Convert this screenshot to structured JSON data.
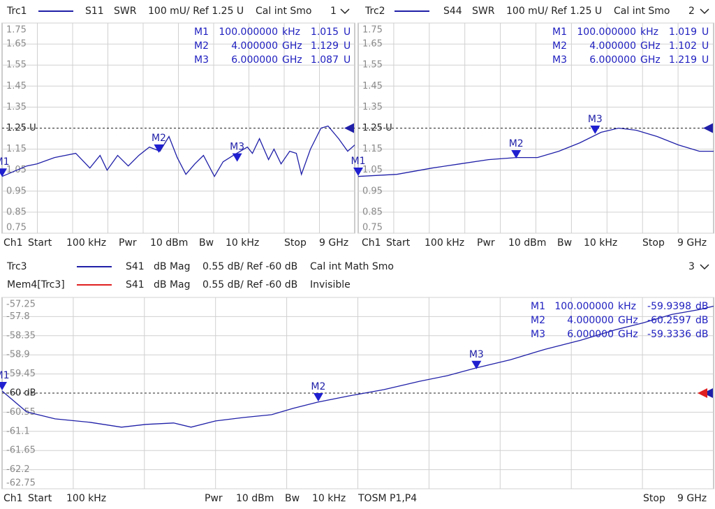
{
  "chart_data": [
    {
      "type": "line",
      "window": "1",
      "footer": [
        "Ch1",
        "Start",
        "100 kHz",
        "Pwr",
        "10 dBm",
        "Bw",
        "10 kHz",
        "Stop",
        "9 GHz"
      ],
      "x": [
        0.0001,
        0.63,
        0.89,
        1.34,
        1.88,
        2.24,
        2.5,
        2.68,
        2.95,
        3.22,
        3.49,
        3.76,
        4.03,
        4.26,
        4.47,
        4.69,
        4.92,
        5.14,
        5.42,
        5.64,
        5.9,
        6.26,
        6.39,
        6.57,
        6.8,
        6.94,
        7.12,
        7.34,
        7.51,
        7.64,
        7.87,
        8.14,
        8.32,
        8.59,
        8.82,
        9
      ],
      "series": [
        {
          "name": "Trc1",
          "color": "#1f1fa8",
          "param": "S11",
          "format": "SWR",
          "scale": "100 mU/ Ref 1.25 U",
          "info": "Cal int Smo",
          "values": [
            1.02,
            1.07,
            1.08,
            1.11,
            1.13,
            1.06,
            1.12,
            1.05,
            1.12,
            1.07,
            1.12,
            1.16,
            1.14,
            1.21,
            1.11,
            1.03,
            1.08,
            1.12,
            1.02,
            1.09,
            1.12,
            1.16,
            1.13,
            1.2,
            1.1,
            1.15,
            1.08,
            1.14,
            1.13,
            1.03,
            1.15,
            1.25,
            1.26,
            1.2,
            1.14,
            1.17
          ]
        }
      ],
      "xlim": [
        0.0001,
        9
      ],
      "ylim": [
        0.75,
        1.75
      ],
      "yticks": [
        1.75,
        1.65,
        1.55,
        1.45,
        1.35,
        {
          "value": 1.25,
          "label": "1.25 U"
        },
        1.15,
        1.05,
        0.95,
        0.85,
        0.75
      ],
      "grid": true,
      "markers": [
        {
          "name": "M1",
          "x": 0.0001,
          "x_label": "100.000000",
          "x_unit": "kHz",
          "value": 1.015,
          "unit": "U"
        },
        {
          "name": "M2",
          "x": 4,
          "x_label": "4.000000",
          "x_unit": "GHz",
          "value": 1.129,
          "unit": "U"
        },
        {
          "name": "M3",
          "x": 6,
          "x_label": "6.000000",
          "x_unit": "GHz",
          "value": 1.087,
          "unit": "U"
        }
      ]
    },
    {
      "type": "line",
      "window": "2",
      "footer": [
        "Ch1",
        "Start",
        "100 kHz",
        "Pwr",
        "10 dBm",
        "Bw",
        "10 kHz",
        "Stop",
        "9 GHz"
      ],
      "x": [
        0.0001,
        0.98,
        1.87,
        2.58,
        3.3,
        4.01,
        4.54,
        5.08,
        5.61,
        6.15,
        6.59,
        7.04,
        7.57,
        8.11,
        8.64,
        9
      ],
      "series": [
        {
          "name": "Trc2",
          "color": "#1f1fa8",
          "param": "S44",
          "format": "SWR",
          "scale": "100 mU/ Ref 1.25 U",
          "info": "Cal int Smo",
          "values": [
            1.02,
            1.03,
            1.06,
            1.08,
            1.1,
            1.11,
            1.11,
            1.14,
            1.18,
            1.23,
            1.25,
            1.24,
            1.21,
            1.17,
            1.14,
            1.14
          ]
        }
      ],
      "xlim": [
        0.0001,
        9
      ],
      "ylim": [
        0.75,
        1.75
      ],
      "yticks": [
        1.75,
        1.65,
        1.55,
        1.45,
        1.35,
        {
          "value": 1.25,
          "label": "1.25 U"
        },
        1.15,
        1.05,
        0.95,
        0.85,
        0.75
      ],
      "grid": true,
      "markers": [
        {
          "name": "M1",
          "x": 0.0001,
          "x_label": "100.000000",
          "x_unit": "kHz",
          "value": 1.019,
          "unit": "U"
        },
        {
          "name": "M2",
          "x": 4,
          "x_label": "4.000000",
          "x_unit": "GHz",
          "value": 1.102,
          "unit": "U"
        },
        {
          "name": "M3",
          "x": 6,
          "x_label": "6.000000",
          "x_unit": "GHz",
          "value": 1.219,
          "unit": "U"
        }
      ]
    },
    {
      "type": "line",
      "window": "3",
      "footer": [
        "Ch1",
        "Start",
        "100 kHz",
        "Pwr",
        "10 dBm",
        "Bw",
        "10 kHz",
        "TOSM P1,P4",
        "Stop",
        "9 GHz"
      ],
      "x": [
        0.0001,
        0.31,
        0.67,
        1.11,
        1.51,
        1.82,
        2.17,
        2.39,
        2.7,
        3.06,
        3.41,
        3.68,
        3.99,
        4.39,
        4.83,
        5.28,
        5.63,
        5.99,
        6.43,
        6.87,
        7.32,
        7.76,
        8.11,
        8.47,
        8.82,
        9
      ],
      "series": [
        {
          "name": "Trc3",
          "color": "#1f1fa8",
          "param": "S41",
          "format": "dB Mag",
          "scale": "0.55 dB/ Ref -60 dB",
          "info": "Cal int Math Smo",
          "values": [
            -59.94,
            -60.54,
            -60.74,
            -60.84,
            -60.98,
            -60.9,
            -60.86,
            -60.98,
            -60.8,
            -60.7,
            -60.62,
            -60.44,
            -60.26,
            -60.08,
            -59.9,
            -59.66,
            -59.5,
            -59.28,
            -59.04,
            -58.74,
            -58.48,
            -58.18,
            -57.98,
            -57.74,
            -57.6,
            -57.5
          ]
        },
        {
          "name": "Mem4[Trc3]",
          "color": "#e02020",
          "param": "S41",
          "format": "dB Mag",
          "scale": "0.55 dB/ Ref -60 dB",
          "info": "Invisible"
        }
      ],
      "xlim": [
        0.0001,
        9
      ],
      "ylim": [
        -62.75,
        -57.25
      ],
      "yticks": [
        -57.25,
        -57.8,
        -58.35,
        -58.9,
        -59.45,
        {
          "value": -60,
          "label": "-60 dB"
        },
        -60.55,
        -61.1,
        -61.65,
        -62.2,
        -62.75
      ],
      "grid": true,
      "markers": [
        {
          "name": "M1",
          "x": 0.0001,
          "x_label": "100.000000",
          "x_unit": "kHz",
          "value": -59.9398,
          "unit": "dB"
        },
        {
          "name": "M2",
          "x": 4,
          "x_label": "4.000000",
          "x_unit": "GHz",
          "value": -60.2597,
          "unit": "dB"
        },
        {
          "name": "M3",
          "x": 6,
          "x_label": "6.000000",
          "x_unit": "GHz",
          "value": -59.3336,
          "unit": "dB"
        }
      ]
    }
  ]
}
